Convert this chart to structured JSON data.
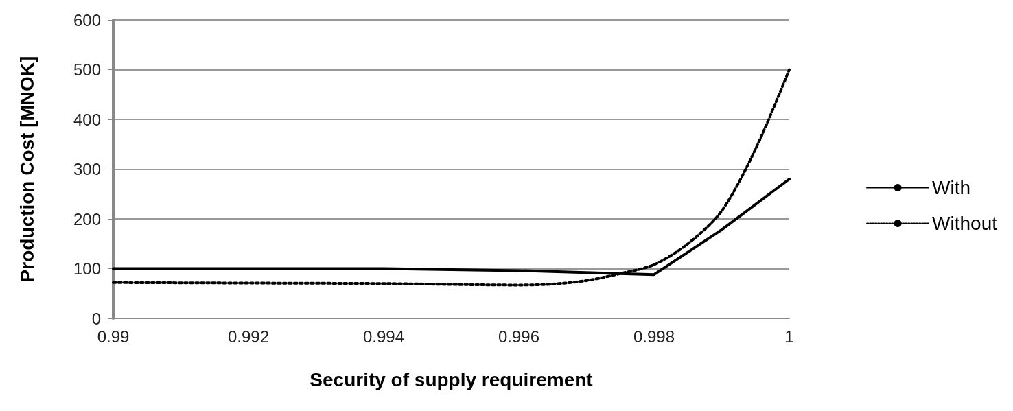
{
  "chart_data": {
    "type": "line",
    "xlabel": "Security of supply requirement",
    "ylabel": "Production Cost [MNOK]",
    "xlim": [
      0.99,
      1
    ],
    "xticks": [
      0.99,
      0.992,
      0.994,
      0.996,
      0.998,
      1
    ],
    "ylim": [
      0,
      600
    ],
    "yticks": [
      0,
      100,
      200,
      300,
      400,
      500,
      600
    ],
    "grid": "y",
    "legend": "right",
    "marker": "none",
    "series": [
      {
        "name": "With",
        "color": "#000000",
        "line_style": "solid",
        "x": [
          0.99,
          0.992,
          0.994,
          0.996,
          0.998,
          0.999,
          1
        ],
        "values": [
          100,
          100,
          100,
          96,
          88,
          178,
          280
        ]
      },
      {
        "name": "Without",
        "color": "#000000",
        "line_style": "dotted",
        "x": [
          0.99,
          0.992,
          0.994,
          0.996,
          0.9965,
          0.997,
          0.9975,
          0.998,
          0.9985,
          0.999,
          0.9995,
          1
        ],
        "values": [
          72,
          71,
          70,
          67,
          69,
          76,
          90,
          108,
          150,
          216,
          340,
          500
        ]
      }
    ]
  }
}
